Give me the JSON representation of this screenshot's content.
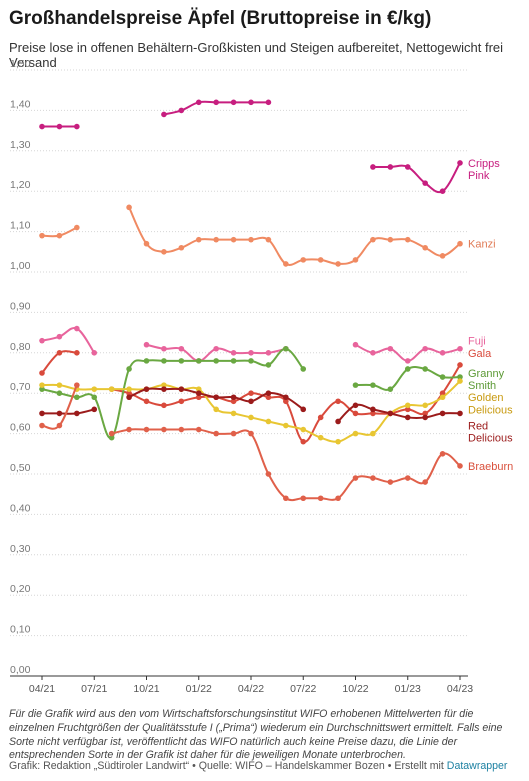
{
  "title": "Großhandelspreise Äpfel (Bruttopreise in €/kg)",
  "subtitle": "Preise lose in offenen Behältern-Großkisten und Steigen aufbereitet, Nettogewicht frei Versand",
  "notes": "Für die Grafik wird aus den vom Wirtschaftsforschungsinstitut WIFO erhobenen Mittelwerten für die einzelnen Fruchtgrößen der Qualitätsstufe I („Prima“) wiederum ein Durchschnittswert ermittelt. Falls eine Sorte nicht verfügbar ist, veröffentlicht das WIFO natürlich auch keine Preise dazu, die Linie der entsprechenden Sorte in der Grafik ist daher für die jeweiligen Monate unterbrochen.",
  "footer": {
    "prefix": "Grafik: Redaktion „Südtiroler Landwirt“ • Quelle: WIFO – Handelskammer Bozen • Erstellt mit ",
    "tool": "Datawrapper"
  },
  "chart_data": {
    "type": "line",
    "title": "Großhandelspreise Äpfel (Bruttopreise in €/kg)",
    "ylabel": "",
    "xlabel": "",
    "ylim": [
      0,
      1.5
    ],
    "yticks": [
      0,
      0.1,
      0.2,
      0.3,
      0.4,
      0.5,
      0.6,
      0.7,
      0.8,
      0.9,
      1.0,
      1.1,
      1.2,
      1.3,
      1.4,
      1.5
    ],
    "ytick_labels": [
      "0,00",
      "0,10",
      "0,20",
      "0,30",
      "0,40",
      "0,50",
      "0,60",
      "0,70",
      "0,80",
      "0,90",
      "1,00",
      "1,10",
      "1,20",
      "1,30",
      "1,40",
      "1,50"
    ],
    "x": [
      "2021-04",
      "2021-05",
      "2021-06",
      "2021-07",
      "2021-08",
      "2021-09",
      "2021-10",
      "2021-11",
      "2021-12",
      "2022-01",
      "2022-02",
      "2022-03",
      "2022-04",
      "2022-05",
      "2022-06",
      "2022-07",
      "2022-08",
      "2022-09",
      "2022-10",
      "2022-11",
      "2022-12",
      "2023-01",
      "2023-02",
      "2023-03",
      "2023-04"
    ],
    "xtick_labels": [
      {
        "index": 0,
        "label": "04/21"
      },
      {
        "index": 3,
        "label": "07/21"
      },
      {
        "index": 6,
        "label": "10/21"
      },
      {
        "index": 9,
        "label": "01/22"
      },
      {
        "index": 12,
        "label": "04/22"
      },
      {
        "index": 15,
        "label": "07/22"
      },
      {
        "index": 18,
        "label": "10/22"
      },
      {
        "index": 21,
        "label": "01/23"
      },
      {
        "index": 24,
        "label": "04/23"
      }
    ],
    "grid": true,
    "series": [
      {
        "name": "Cripps Pink",
        "color": "#c71e7f",
        "label_lines": [
          "Cripps",
          "Pink"
        ],
        "values": [
          1.36,
          1.36,
          1.36,
          null,
          null,
          null,
          null,
          1.39,
          1.4,
          1.42,
          1.42,
          1.42,
          1.42,
          1.42,
          null,
          null,
          null,
          null,
          null,
          1.26,
          1.26,
          1.26,
          1.22,
          1.2,
          1.27
        ]
      },
      {
        "name": "Kanzi",
        "color": "#f08a62",
        "label_lines": [
          "Kanzi"
        ],
        "values": [
          1.09,
          1.09,
          1.11,
          null,
          null,
          1.16,
          1.07,
          1.05,
          1.06,
          1.08,
          1.08,
          1.08,
          1.08,
          1.08,
          1.02,
          1.03,
          1.03,
          1.02,
          1.03,
          1.08,
          1.08,
          1.08,
          1.06,
          1.04,
          1.07
        ]
      },
      {
        "name": "Fuji",
        "color": "#e8649c",
        "label_lines": [
          "Fuji"
        ],
        "values": [
          0.83,
          0.84,
          0.86,
          0.8,
          null,
          null,
          0.82,
          0.81,
          0.81,
          0.78,
          0.81,
          0.8,
          0.8,
          0.8,
          0.81,
          null,
          null,
          null,
          0.82,
          0.8,
          0.81,
          0.78,
          0.81,
          0.8,
          0.81
        ]
      },
      {
        "name": "Gala",
        "color": "#d94a3c",
        "label_lines": [
          "Gala"
        ],
        "values": [
          0.75,
          0.8,
          0.8,
          null,
          0.71,
          0.7,
          0.68,
          0.67,
          0.68,
          0.69,
          0.69,
          0.68,
          0.7,
          0.69,
          0.68,
          0.58,
          0.64,
          0.68,
          0.65,
          0.65,
          0.65,
          0.66,
          0.65,
          0.7,
          0.77
        ]
      },
      {
        "name": "Granny Smith",
        "color": "#6aa842",
        "label_lines": [
          "Granny",
          "Smith"
        ],
        "values": [
          0.71,
          0.7,
          0.69,
          0.69,
          0.59,
          0.76,
          0.78,
          0.78,
          0.78,
          0.78,
          0.78,
          0.78,
          0.78,
          0.77,
          0.81,
          0.76,
          null,
          null,
          0.72,
          0.72,
          0.71,
          0.76,
          0.76,
          0.74,
          0.74
        ]
      },
      {
        "name": "Golden Delicious",
        "color": "#e8c632",
        "label_lines": [
          "Golden",
          "Delicious"
        ],
        "values": [
          0.72,
          0.72,
          0.71,
          0.71,
          0.71,
          0.71,
          0.71,
          0.72,
          0.71,
          0.71,
          0.66,
          0.65,
          0.64,
          0.63,
          0.62,
          0.61,
          0.59,
          0.58,
          0.6,
          0.6,
          0.65,
          0.67,
          0.67,
          0.69,
          0.73
        ]
      },
      {
        "name": "Red Delicious",
        "color": "#9b1b1b",
        "label_lines": [
          "Red",
          "Delicious"
        ],
        "values": [
          0.65,
          0.65,
          0.65,
          0.66,
          null,
          0.69,
          0.71,
          0.71,
          0.71,
          0.7,
          0.69,
          0.69,
          0.68,
          0.7,
          0.69,
          0.66,
          null,
          0.63,
          0.67,
          0.66,
          0.65,
          0.64,
          0.64,
          0.65,
          0.65
        ]
      },
      {
        "name": "Braeburn",
        "color": "#e0604a",
        "label_lines": [
          "Braeburn"
        ],
        "values": [
          0.62,
          0.62,
          0.72,
          null,
          0.6,
          0.61,
          0.61,
          0.61,
          0.61,
          0.61,
          0.6,
          0.6,
          0.6,
          0.5,
          0.44,
          0.44,
          0.44,
          0.44,
          0.49,
          0.49,
          0.48,
          0.49,
          0.48,
          0.55,
          0.52
        ]
      }
    ],
    "label_colors": {
      "Cripps Pink": "#c71e7f",
      "Kanzi": "#e07a55",
      "Fuji": "#e8649c",
      "Gala": "#d94a3c",
      "Granny Smith": "#5c9a35",
      "Golden Delicious": "#c89a10",
      "Red Delicious": "#9b1b1b",
      "Braeburn": "#d9503c"
    },
    "label_positions_y": {
      "Cripps Pink": [
        1.27,
        1.24
      ],
      "Kanzi": [
        1.07
      ],
      "Fuji": [
        0.83
      ],
      "Gala": [
        0.8
      ],
      "Granny Smith": [
        0.75,
        0.72
      ],
      "Golden Delicious": [
        0.69,
        0.66
      ],
      "Red Delicious": [
        0.62,
        0.59
      ],
      "Braeburn": [
        0.52
      ]
    }
  }
}
